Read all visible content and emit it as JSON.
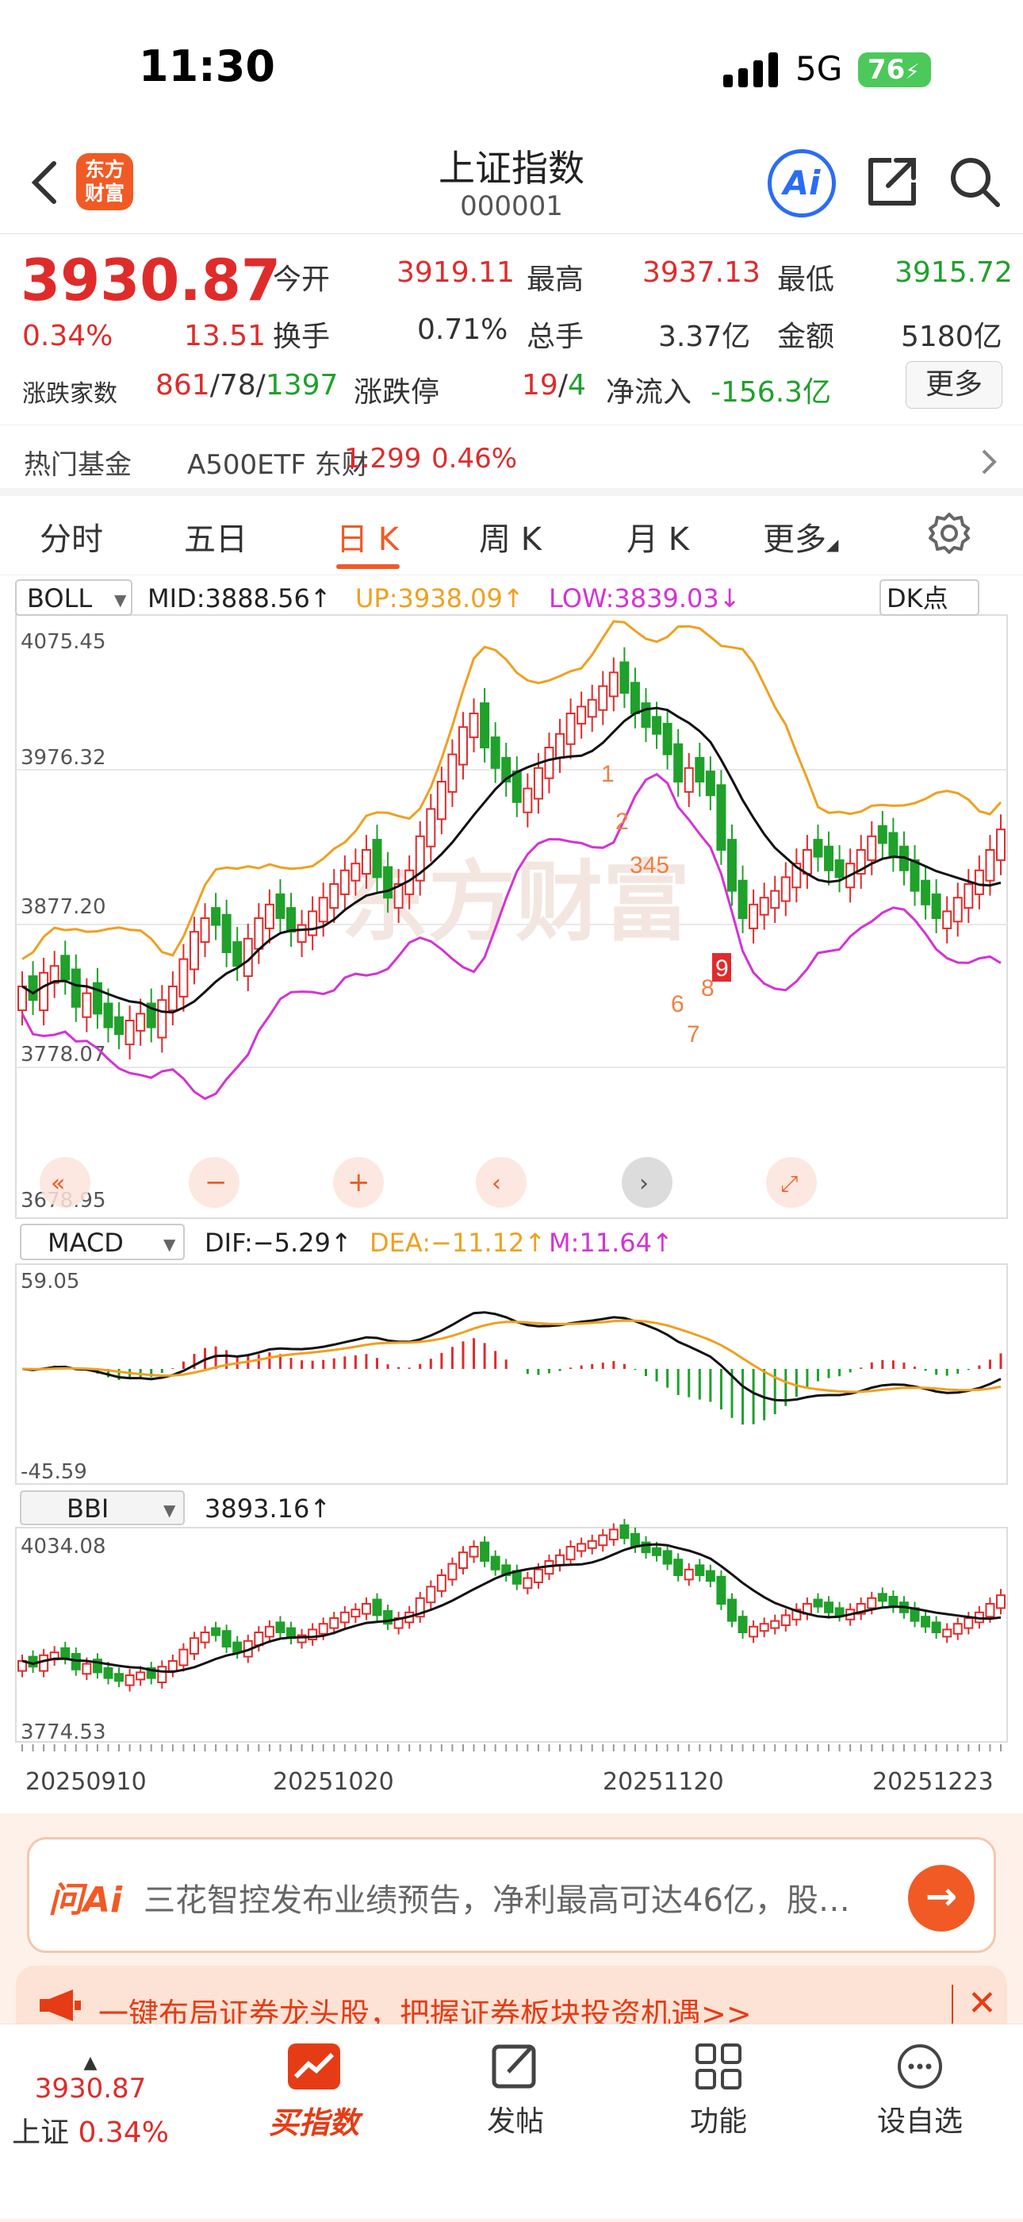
{
  "status": {
    "time": "11:30",
    "network": "5G",
    "battery": "76"
  },
  "nav": {
    "logo_line1": "东方",
    "logo_line2": "财富",
    "title": "上证指数",
    "code": "000001",
    "ai_label": "Ai"
  },
  "quote": {
    "price": "3930.87",
    "pct": "0.34%",
    "change": "13.51",
    "open_label": "今开",
    "open": "3919.11",
    "high_label": "最高",
    "high": "3937.13",
    "low_label": "最低",
    "low": "3915.72",
    "turnover_label": "换手",
    "turnover": "0.71%",
    "volume_label": "总手",
    "volume": "3.37亿",
    "amount_label": "金额",
    "amount": "5180亿",
    "breadth_label": "涨跌家数",
    "up": "861",
    "sep1": "/",
    "flat": "78",
    "sep2": "/",
    "down": "1397",
    "limit_label": "涨跌停",
    "limit_up": "19",
    "sep3": "/",
    "limit_down": "4",
    "netflow_label": "净流入",
    "netflow": "-156.3亿",
    "more": "更多"
  },
  "fund": {
    "label": "热门基金",
    "name": "A500ETF 东财",
    "price": "1.299",
    "pct": "0.46%"
  },
  "tabs": [
    "分时",
    "五日",
    "日 K",
    "周 K",
    "月 K",
    "更多"
  ],
  "main_chart": {
    "indicator": "BOLL",
    "mid": "MID:3888.56↑",
    "up": "UP:3938.09↑",
    "low": "LOW:3839.03↓",
    "dk": "DK点",
    "y_labels": [
      "4075.45",
      "3976.32",
      "3877.20",
      "3778.07",
      "3678.95"
    ],
    "markers": [
      "1",
      "2",
      "345",
      "6",
      "7",
      "8",
      "9"
    ],
    "watermark": "东方财富"
  },
  "macd_panel": {
    "indicator": "MACD",
    "dif": "DIF:−5.29↑",
    "dea": "DEA:−11.12↑",
    "m": "M:11.64↑",
    "y_top": "59.05",
    "y_bottom": "-45.59"
  },
  "bbi_panel": {
    "indicator": "BBI",
    "value": "3893.16↑",
    "y_top": "4034.08",
    "y_bottom": "3774.53"
  },
  "x_dates": [
    "20250910",
    "20251020",
    "20251120",
    "20251223"
  ],
  "chart_data": {
    "type": "candlestick",
    "ylim": [
      3678.95,
      4075.45
    ],
    "bands": {
      "upper_last": 3938.09,
      "mid_last": 3888.56,
      "lower_last": 3839.03
    },
    "macd": {
      "dif_last": -5.29,
      "dea_last": -11.12,
      "m_last": 11.64
    }
  },
  "ai_bar": {
    "logo": "问Ai",
    "text": "三花智控发布业绩预告，净利最高可达46亿，股…",
    "go": "→"
  },
  "promo": {
    "text": "一键布局证券龙头股，把握证券板块投资机遇>>",
    "close": "✕"
  },
  "tabbar": {
    "index_price": "3930.87",
    "index_name": "上证",
    "index_pct": "0.34%",
    "buy": "买指数",
    "post": "发帖",
    "func": "功能",
    "watch": "设自选"
  },
  "colors": {
    "up": "#e02b2b",
    "down": "#1fa12b",
    "accent": "#f15a24",
    "upper": "#f0a020",
    "lower": "#d433d4"
  }
}
